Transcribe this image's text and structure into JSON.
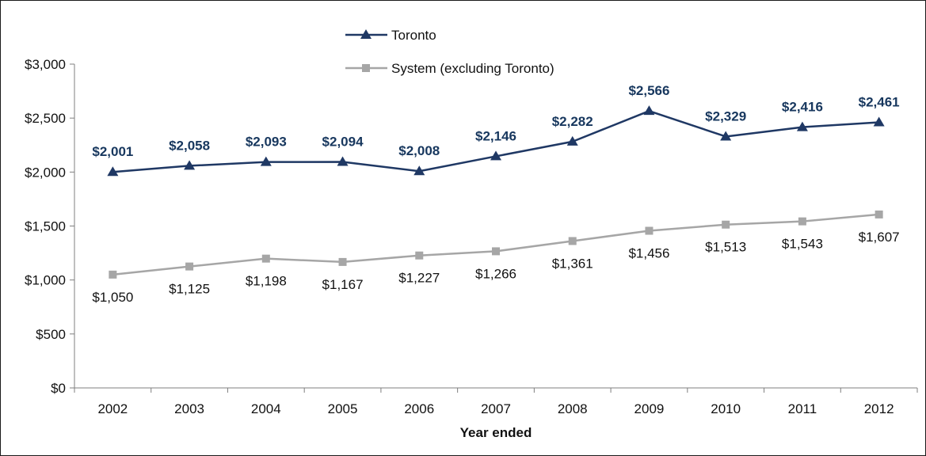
{
  "chart_data": {
    "type": "line",
    "title": "",
    "xlabel": "Year ended",
    "ylabel": "",
    "categories": [
      "2002",
      "2003",
      "2004",
      "2005",
      "2006",
      "2007",
      "2008",
      "2009",
      "2010",
      "2011",
      "2012"
    ],
    "ylim": [
      0,
      3000
    ],
    "yticks": [
      0,
      500,
      1000,
      1500,
      2000,
      2500,
      3000
    ],
    "ytick_labels": [
      "$0",
      "$500",
      "$1,000",
      "$1,500",
      "$2,000",
      "$2,500",
      "$3,000"
    ],
    "grid": false,
    "legend_position": "top-center",
    "series": [
      {
        "name": "Toronto",
        "marker": "triangle",
        "color": "#1f3864",
        "label_color": "#17375e",
        "label_position": "above",
        "values": [
          2001,
          2058,
          2093,
          2094,
          2008,
          2146,
          2282,
          2566,
          2329,
          2416,
          2461
        ],
        "labels": [
          "$2,001",
          "$2,058",
          "$2,093",
          "$2,094",
          "$2,008",
          "$2,146",
          "$2,282",
          "$2,566",
          "$2,329",
          "$2,416",
          "$2,461"
        ]
      },
      {
        "name": "System (excluding Toronto)",
        "marker": "square",
        "color": "#a6a6a6",
        "label_color": "#111111",
        "label_position": "below",
        "values": [
          1050,
          1125,
          1198,
          1167,
          1227,
          1266,
          1361,
          1456,
          1513,
          1543,
          1607
        ],
        "labels": [
          "$1,050",
          "$1,125",
          "$1,198",
          "$1,167",
          "$1,227",
          "$1,266",
          "$1,361",
          "$1,456",
          "$1,513",
          "$1,543",
          "$1,607"
        ]
      }
    ]
  }
}
